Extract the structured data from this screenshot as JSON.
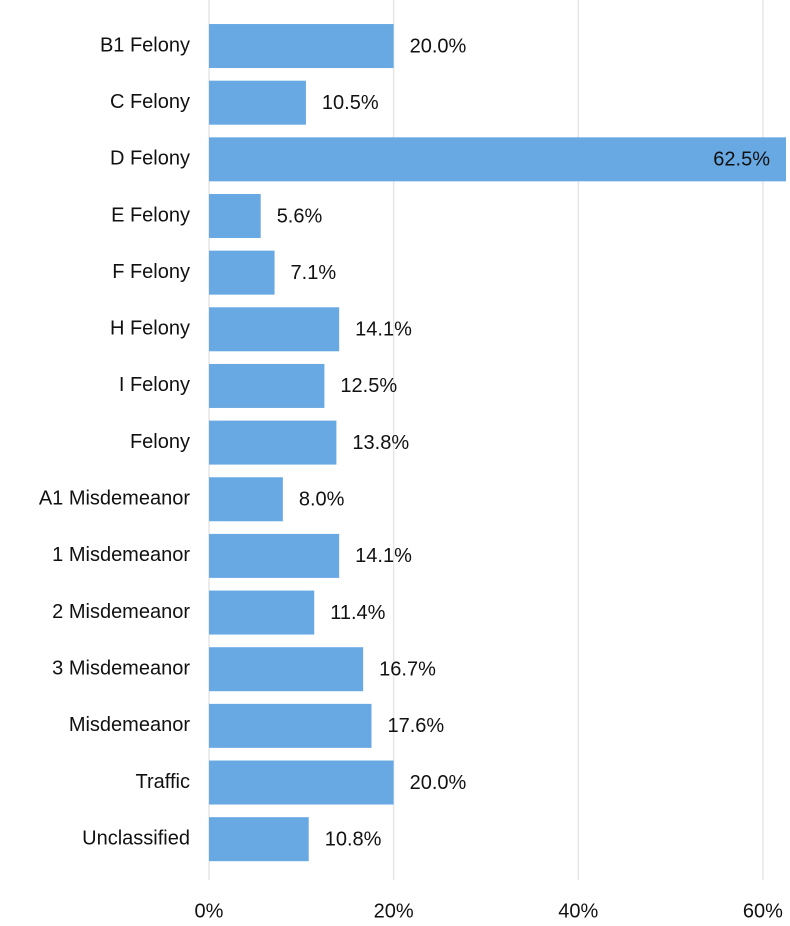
{
  "chart_data": {
    "type": "bar",
    "orientation": "horizontal",
    "categories": [
      "B1 Felony",
      "C Felony",
      "D Felony",
      "E Felony",
      "F Felony",
      "H Felony",
      "I Felony",
      "Felony",
      "A1 Misdemeanor",
      "1 Misdemeanor",
      "2 Misdemeanor",
      "3 Misdemeanor",
      "Misdemeanor",
      "Traffic",
      "Unclassified"
    ],
    "values": [
      20.0,
      10.5,
      62.5,
      5.6,
      7.1,
      14.1,
      12.5,
      13.8,
      8.0,
      14.1,
      11.4,
      16.7,
      17.6,
      20.0,
      10.8
    ],
    "value_labels": [
      "20.0%",
      "10.5%",
      "62.5%",
      "5.6%",
      "7.1%",
      "14.1%",
      "12.5%",
      "13.8%",
      "8.0%",
      "14.1%",
      "11.4%",
      "16.7%",
      "17.6%",
      "20.0%",
      "10.8%"
    ],
    "color": "#68a9e4",
    "xlim": [
      0,
      62.5
    ],
    "xticks": [
      {
        "value": 0,
        "label": "0%"
      },
      {
        "value": 20,
        "label": "20%"
      },
      {
        "value": 40,
        "label": "40%"
      },
      {
        "value": 60,
        "label": "60%"
      }
    ],
    "grid": true
  }
}
